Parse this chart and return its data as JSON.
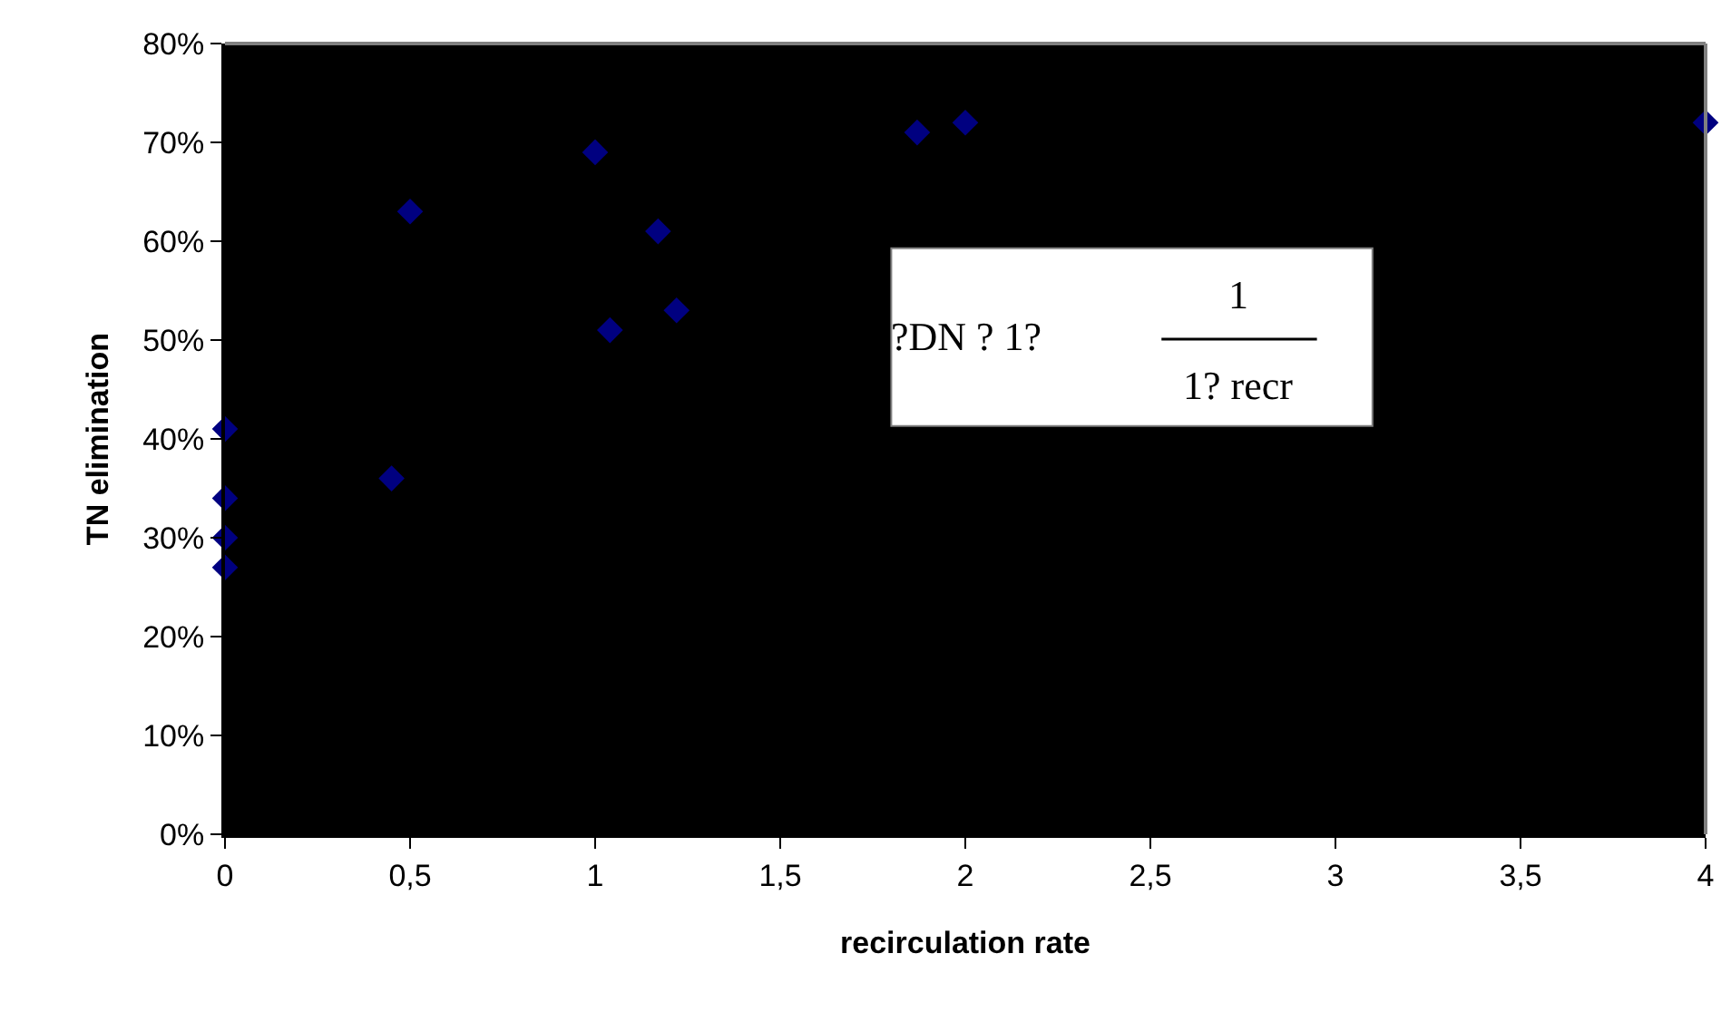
{
  "chart_data": {
    "type": "scatter",
    "xlabel": "recirculation rate",
    "ylabel": "TN elimination",
    "x": [
      0,
      0,
      0,
      0,
      0.45,
      0.5,
      1.0,
      1.17,
      1.04,
      1.22,
      1.87,
      2.0,
      4.0
    ],
    "series": [
      {
        "color": "#000080",
        "values": [
          0.41,
          0.34,
          0.3,
          0.27,
          0.36,
          0.63,
          0.69,
          0.61,
          0.51,
          0.53,
          0.71,
          0.72,
          0.72
        ]
      }
    ],
    "marker": "diamond",
    "grid": false,
    "legend": false,
    "xlim": [
      0,
      4
    ],
    "xticks": [
      0,
      {
        "value": 0.5,
        "label": "0,5"
      },
      1,
      {
        "value": 1.5,
        "label": "1,5"
      },
      2,
      {
        "value": 2.5,
        "label": "2,5"
      },
      3,
      {
        "value": 3.5,
        "label": "3,5"
      },
      4
    ],
    "ylim": [
      0,
      0.8
    ],
    "yticks": [
      {
        "value": 0,
        "label": "0%"
      },
      {
        "value": 0.1,
        "label": "10%"
      },
      {
        "value": 0.2,
        "label": "20%"
      },
      {
        "value": 0.3,
        "label": "30%"
      },
      {
        "value": 0.4,
        "label": "40%"
      },
      {
        "value": 0.5,
        "label": "50%"
      },
      {
        "value": 0.6,
        "label": "60%"
      },
      {
        "value": 0.7,
        "label": "70%"
      },
      {
        "value": 0.8,
        "label": "80%"
      }
    ],
    "annotations": [
      "?DN ? 1?",
      "1",
      "1? recr"
    ]
  }
}
